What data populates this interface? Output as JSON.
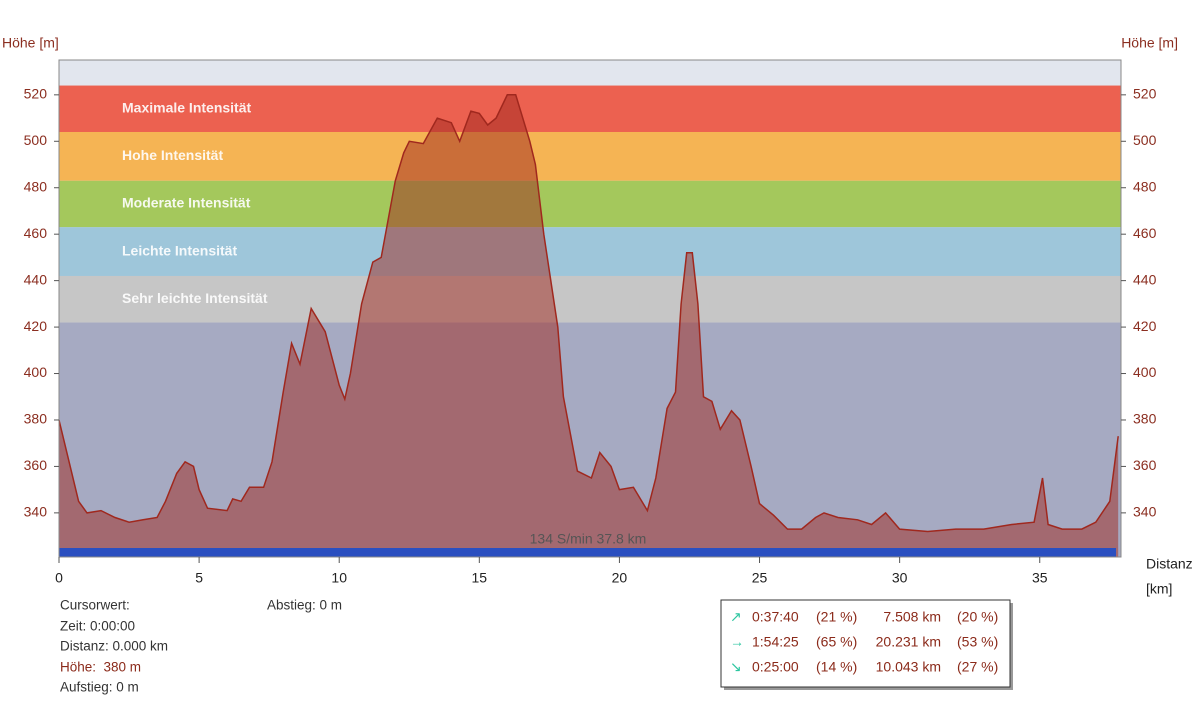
{
  "chart_data": {
    "type": "area",
    "ylabel": "Höhe [m]",
    "y2label": "Höhe [m]",
    "xlabel": "Distanz",
    "xunit": "[km]",
    "annotation": "134 S/min 37.8 km",
    "xlim": [
      0,
      37.9
    ],
    "ylim": [
      321,
      535
    ],
    "y2lim": [
      321,
      535
    ],
    "xticks": [
      0,
      5,
      10,
      15,
      20,
      25,
      30,
      35
    ],
    "yticks": [
      340,
      360,
      380,
      400,
      420,
      440,
      460,
      480,
      500,
      520
    ],
    "y2ticks": [
      340,
      360,
      380,
      400,
      420,
      440,
      460,
      480,
      500,
      520
    ],
    "bands": [
      {
        "label": "Maximale Intensität",
        "from": 504,
        "to": 524,
        "color": "#ec6150"
      },
      {
        "label": "Hohe Intensität",
        "from": 483,
        "to": 504,
        "color": "#f5b454"
      },
      {
        "label": "Moderate Intensität",
        "from": 463,
        "to": 483,
        "color": "#a4c85c"
      },
      {
        "label": "Leichte Intensität",
        "from": 442,
        "to": 463,
        "color": "#9ec6da"
      },
      {
        "label": "Sehr leichte Intensität",
        "from": 422,
        "to": 442,
        "color": "#c6c6c6"
      }
    ],
    "x": [
      0,
      0.3,
      0.7,
      1,
      1.5,
      2,
      2.5,
      3,
      3.5,
      3.8,
      4.2,
      4.5,
      4.8,
      5,
      5.3,
      6,
      6.2,
      6.5,
      6.8,
      7.3,
      7.6,
      8,
      8.3,
      8.6,
      9,
      9.5,
      10,
      10.2,
      10.4,
      10.8,
      11.2,
      11.5,
      12,
      12.3,
      12.5,
      13,
      13.5,
      14,
      14.3,
      14.7,
      15,
      15.3,
      15.6,
      16,
      16.3,
      16.8,
      17,
      17.3,
      17.8,
      18,
      18.5,
      19,
      19.3,
      19.7,
      20,
      20.5,
      21,
      21.3,
      21.7,
      22,
      22.2,
      22.4,
      22.6,
      22.8,
      23,
      23.3,
      23.6,
      24,
      24.3,
      24.7,
      25,
      25.5,
      26,
      26.5,
      27,
      27.3,
      27.8,
      28.5,
      29,
      29.5,
      30,
      31,
      32,
      33,
      34,
      34.8,
      35.1,
      35.3,
      35.8,
      36.5,
      37,
      37.5,
      37.8
    ],
    "series": [
      {
        "color": "#a0281e",
        "values": [
          380,
          365,
          345,
          340,
          341,
          338,
          336,
          337,
          338,
          345,
          357,
          362,
          360,
          350,
          342,
          341,
          346,
          345,
          351,
          351,
          362,
          392,
          413,
          404,
          428,
          418,
          395,
          389,
          400,
          430,
          448,
          450,
          483,
          495,
          500,
          499,
          510,
          508,
          500,
          513,
          512,
          507,
          510,
          520,
          520,
          500,
          490,
          460,
          420,
          390,
          358,
          355,
          366,
          360,
          350,
          351,
          341,
          355,
          385,
          392,
          430,
          452,
          452,
          430,
          390,
          388,
          376,
          384,
          380,
          360,
          344,
          339,
          333,
          333,
          338,
          340,
          338,
          337,
          335,
          340,
          333,
          332,
          333,
          333,
          335,
          336,
          355,
          335,
          333,
          333,
          336,
          345,
          373
        ]
      }
    ]
  },
  "cursor": {
    "title": "Cursorwert:",
    "time": "Zeit: 0:00:00",
    "distance": "Distanz: 0.000 km",
    "height": "Höhe:  380 m",
    "ascent": "Aufstieg: 0 m",
    "descent": "Abstieg: 0 m"
  },
  "summary": {
    "rows": [
      [
        "0:37:40",
        "(21 %)",
        "7.508 km",
        "(20 %)"
      ],
      [
        "1:54:25",
        "(65 %)",
        "20.231 km",
        "(53 %)"
      ],
      [
        "0:25:00",
        "(14 %)",
        "10.043 km",
        "(27 %)"
      ]
    ]
  }
}
